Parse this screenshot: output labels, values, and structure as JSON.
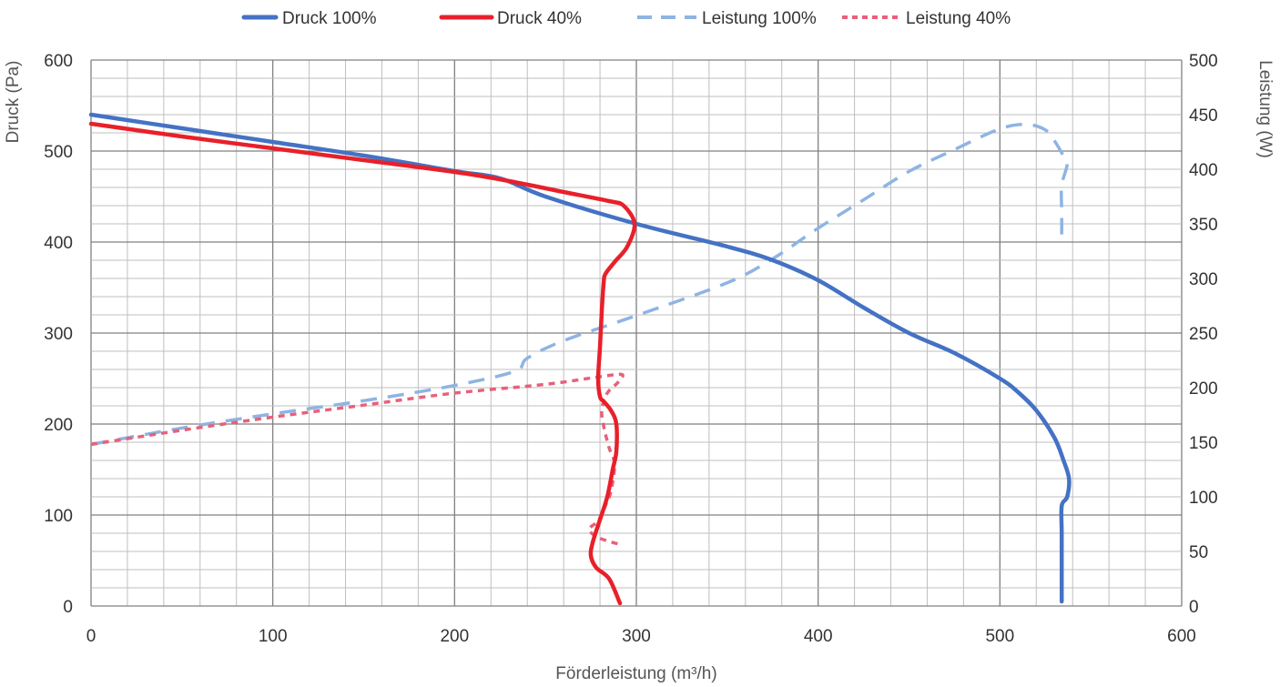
{
  "chart_data": {
    "type": "line",
    "title": "",
    "xlabel": "Förderleistung (m³/h)",
    "ylabel_left": "Druck (Pa)",
    "ylabel_right": "Leistung (W)",
    "xlim": [
      0,
      600
    ],
    "ylim_left": [
      0,
      600
    ],
    "ylim_right": [
      0,
      500
    ],
    "x_ticks": [
      0,
      100,
      200,
      300,
      400,
      500,
      600
    ],
    "y_left_ticks": [
      0,
      100,
      200,
      300,
      400,
      500,
      600
    ],
    "y_right_ticks": [
      0,
      50,
      100,
      150,
      200,
      250,
      300,
      350,
      400,
      450,
      500
    ],
    "grid": true,
    "legend_position": "top",
    "colors": {
      "druck_100": "#4472C4",
      "druck_40": "#E8202A",
      "leistung_100": "#8EB4E3",
      "leistung_40": "#E8607A",
      "grid_major": "#808080",
      "grid_minor": "#BFBFBF"
    },
    "series": [
      {
        "name": "Druck 100%",
        "axis": "left",
        "style": "solid",
        "points": [
          [
            0,
            540
          ],
          [
            50,
            525
          ],
          [
            100,
            510
          ],
          [
            150,
            495
          ],
          [
            200,
            478
          ],
          [
            225,
            470
          ],
          [
            250,
            450
          ],
          [
            300,
            420
          ],
          [
            350,
            395
          ],
          [
            375,
            380
          ],
          [
            400,
            358
          ],
          [
            425,
            328
          ],
          [
            450,
            300
          ],
          [
            475,
            278
          ],
          [
            500,
            250
          ],
          [
            510,
            235
          ],
          [
            520,
            215
          ],
          [
            530,
            185
          ],
          [
            535,
            160
          ],
          [
            538,
            140
          ],
          [
            537,
            120
          ],
          [
            534,
            110
          ],
          [
            534,
            80
          ],
          [
            534,
            40
          ],
          [
            534,
            5
          ]
        ]
      },
      {
        "name": "Druck 40%",
        "axis": "left",
        "style": "solid",
        "points": [
          [
            0,
            530
          ],
          [
            50,
            516
          ],
          [
            100,
            503
          ],
          [
            150,
            490
          ],
          [
            200,
            477
          ],
          [
            230,
            467
          ],
          [
            260,
            455
          ],
          [
            285,
            445
          ],
          [
            293,
            440
          ],
          [
            299,
            420
          ],
          [
            295,
            395
          ],
          [
            288,
            378
          ],
          [
            283,
            365
          ],
          [
            282,
            355
          ],
          [
            281,
            325
          ],
          [
            280,
            285
          ],
          [
            279,
            250
          ],
          [
            280,
            230
          ],
          [
            282,
            225
          ],
          [
            286,
            215
          ],
          [
            289,
            200
          ],
          [
            289,
            170
          ],
          [
            287,
            150
          ],
          [
            284,
            120
          ],
          [
            280,
            95
          ],
          [
            276,
            70
          ],
          [
            275,
            55
          ],
          [
            278,
            42
          ],
          [
            285,
            30
          ],
          [
            291,
            3
          ]
        ]
      },
      {
        "name": "Leistung 100%",
        "axis": "right",
        "style": "dashed",
        "points": [
          [
            0,
            148
          ],
          [
            50,
            163
          ],
          [
            100,
            176
          ],
          [
            150,
            188
          ],
          [
            200,
            202
          ],
          [
            233,
            215
          ],
          [
            240,
            227
          ],
          [
            260,
            243
          ],
          [
            300,
            266
          ],
          [
            350,
            296
          ],
          [
            375,
            318
          ],
          [
            400,
            346
          ],
          [
            425,
            372
          ],
          [
            450,
            398
          ],
          [
            475,
            418
          ],
          [
            500,
            437
          ],
          [
            515,
            441
          ],
          [
            525,
            436
          ],
          [
            530,
            426
          ],
          [
            534,
            415
          ],
          [
            537,
            405
          ],
          [
            534,
            385
          ],
          [
            534,
            360
          ],
          [
            534,
            335
          ]
        ]
      },
      {
        "name": "Leistung 40%",
        "axis": "right",
        "style": "dotted",
        "points": [
          [
            0,
            148
          ],
          [
            50,
            161
          ],
          [
            100,
            173
          ],
          [
            150,
            184
          ],
          [
            200,
            195
          ],
          [
            250,
            203
          ],
          [
            280,
            210
          ],
          [
            292,
            212
          ],
          [
            290,
            205
          ],
          [
            284,
            195
          ],
          [
            281,
            180
          ],
          [
            282,
            165
          ],
          [
            285,
            145
          ],
          [
            288,
            130
          ],
          [
            286,
            105
          ],
          [
            283,
            92
          ],
          [
            279,
            78
          ],
          [
            274,
            70
          ],
          [
            280,
            62
          ],
          [
            292,
            56
          ]
        ]
      }
    ],
    "legend": [
      "Druck 100%",
      "Druck 40%",
      "Leistung 100%",
      "Leistung 40%"
    ]
  }
}
